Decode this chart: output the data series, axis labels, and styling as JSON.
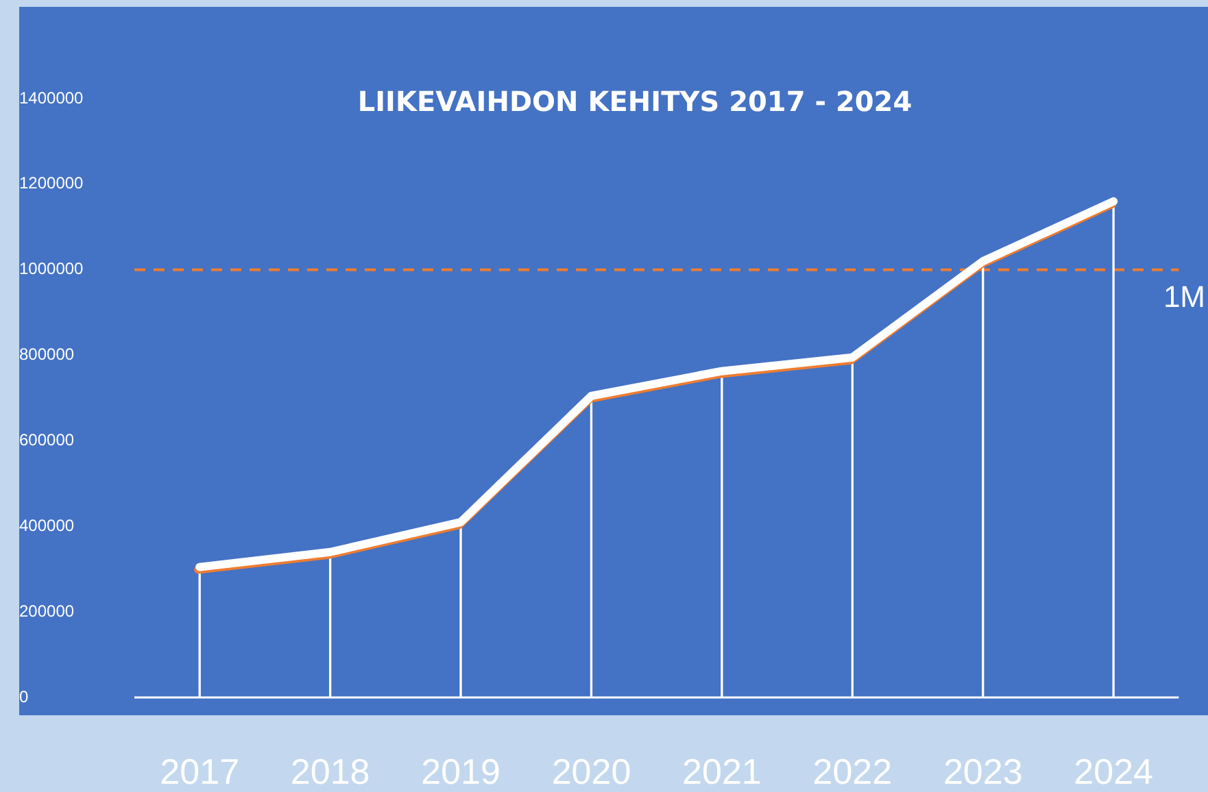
{
  "chart_data": {
    "type": "line",
    "title": "LIIKEVAIHDON KEHITYS 2017 - 2024",
    "categories": [
      "2017",
      "2018",
      "2019",
      "2020",
      "2021",
      "2022",
      "2023",
      "2024"
    ],
    "series": [
      {
        "color": "#ffffff",
        "values": [
          305000,
          340000,
          410000,
          705000,
          763000,
          795000,
          1020000,
          1160000
        ]
      },
      {
        "type": "bar",
        "color": "#ffffff",
        "values": [
          305000,
          340000,
          410000,
          705000,
          763000,
          795000,
          1020000,
          1160000
        ]
      }
    ],
    "ylim": [
      0,
      1400000
    ],
    "yticks": [
      0,
      200000,
      400000,
      600000,
      800000,
      1000000,
      1200000,
      1400000
    ],
    "grid": false,
    "legend": false,
    "marker": "none",
    "line_style": "solid",
    "ref_lines": [
      {
        "axis": "y",
        "value": 1000000,
        "label": "1M",
        "color": "#ed7d31",
        "line_style": "dashed"
      }
    ]
  }
}
